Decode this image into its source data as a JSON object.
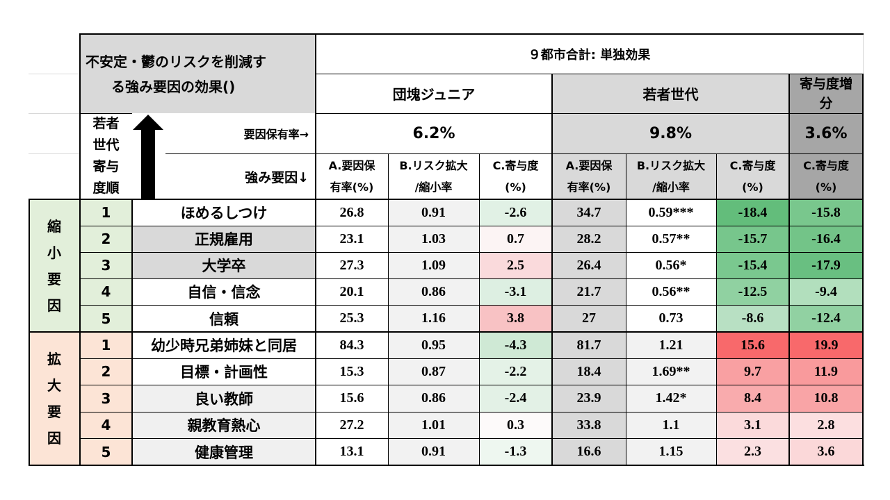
{
  "header": {
    "title_line1": "不安定・鬱のリスクを削減す",
    "title_line2": "る強み要因の効果()",
    "super_header": "９都市合計: 単独効果",
    "group_dankai": "団塊ジュニア",
    "group_wakamono": "若者世代",
    "group_zobun_line1": "寄与度増",
    "group_zobun_line2": "分",
    "rank_label_chars": [
      "若者",
      "世代",
      "寄与",
      "度順"
    ],
    "holding_rate_label": "要因保有率→",
    "strength_factor_label": "強み要因↓",
    "rate_dankai": "6.2%",
    "rate_wakamono": "9.8%",
    "rate_zobun": "3.6%",
    "col_a_line1": "A.要因保",
    "col_a_line2": "有率(%)",
    "col_b_line1": "B.リスク拡大",
    "col_b_line2": "/縮小率",
    "col_c_line1": "C.寄与度",
    "col_c_line2": "(%)"
  },
  "groups": {
    "shrink_chars": [
      "縮",
      "小",
      "要",
      "因"
    ],
    "expand_chars": [
      "拡",
      "大",
      "要",
      "因"
    ]
  },
  "rows": [
    {
      "rank": "1",
      "factor": "ほめるしつけ",
      "d_a": "26.8",
      "d_b": "0.91",
      "d_c": "-2.6",
      "w_a": "34.7",
      "w_b": "0.59***",
      "w_c": "-18.4",
      "z_c": "-15.8",
      "factor_bg": "#ffffff",
      "d_c_bg": "#e1f1e5",
      "w_c_bg": "#63bd7b",
      "z_c_bg": "#79c78d"
    },
    {
      "rank": "2",
      "factor": "正規雇用",
      "d_a": "23.1",
      "d_b": "1.03",
      "d_c": "0.7",
      "w_a": "28.2",
      "w_b": "0.57**",
      "w_c": "-15.7",
      "z_c": "-16.4",
      "factor_bg": "#d9d9d9",
      "d_c_bg": "#fcf4f4",
      "w_c_bg": "#77c68c",
      "z_c_bg": "#73c488"
    },
    {
      "rank": "3",
      "factor": "大学卒",
      "d_a": "27.3",
      "d_b": "1.09",
      "d_c": "2.5",
      "w_a": "26.4",
      "w_b": "0.56*",
      "w_c": "-15.4",
      "z_c": "-17.9",
      "factor_bg": "#d9d9d9",
      "d_c_bg": "#fadadc",
      "w_c_bg": "#7ac88f",
      "z_c_bg": "#69bf81"
    },
    {
      "rank": "4",
      "factor": "自信・信念",
      "d_a": "20.1",
      "d_b": "0.86",
      "d_c": "-3.1",
      "w_a": "21.7",
      "w_b": "0.56**",
      "w_c": "-12.5",
      "z_c": "-9.4",
      "factor_bg": "#ffffff",
      "d_c_bg": "#ddefe2",
      "w_c_bg": "#90d1a1",
      "z_c_bg": "#b2dfbd"
    },
    {
      "rank": "5",
      "factor": "信頼",
      "d_a": "25.3",
      "d_b": "1.16",
      "d_c": "3.8",
      "w_a": "27",
      "w_b": "0.73",
      "w_c": "-8.6",
      "z_c": "-12.4",
      "factor_bg": "#ffffff",
      "d_c_bg": "#f8c2c4",
      "w_c_bg": "#b8e0c3",
      "z_c_bg": "#91d1a2"
    },
    {
      "rank": "1",
      "factor": "幼少時兄弟姉妹と同居",
      "d_a": "84.3",
      "d_b": "0.95",
      "d_c": "-4.3",
      "w_a": "81.7",
      "w_b": "1.21",
      "w_c": "15.6",
      "z_c": "19.9",
      "factor_bg": "#ffffff",
      "d_c_bg": "#cfe9d5",
      "w_c_bg": "#f8696b",
      "z_c_bg": "#f8696b"
    },
    {
      "rank": "2",
      "factor": "目標・計画性",
      "d_a": "15.3",
      "d_b": "0.87",
      "d_c": "-2.2",
      "w_a": "18.4",
      "w_b": "1.69**",
      "w_c": "9.7",
      "z_c": "11.9",
      "factor_bg": "#ffffff",
      "d_c_bg": "#e4f2e7",
      "w_c_bg": "#f9a0a2",
      "z_c_bg": "#f99a9c"
    },
    {
      "rank": "3",
      "factor": "良い教師",
      "d_a": "15.6",
      "d_b": "0.86",
      "d_c": "-2.4",
      "w_a": "23.9",
      "w_b": "1.42*",
      "w_c": "8.4",
      "z_c": "10.8",
      "factor_bg": "#f0f0f0",
      "d_c_bg": "#e3f1e6",
      "w_c_bg": "#f9abad",
      "z_c_bg": "#f9a4a6"
    },
    {
      "rank": "4",
      "factor": "親教育熱心",
      "d_a": "27.2",
      "d_b": "1.01",
      "d_c": "0.3",
      "w_a": "33.8",
      "w_b": "1.1",
      "w_c": "3.1",
      "z_c": "2.8",
      "factor_bg": "#f0f0f0",
      "d_c_bg": "#fdfafa",
      "w_c_bg": "#fbdadb",
      "z_c_bg": "#fcdfe0"
    },
    {
      "rank": "5",
      "factor": "健康管理",
      "d_a": "13.1",
      "d_b": "0.91",
      "d_c": "-1.3",
      "w_a": "16.6",
      "w_b": "1.15",
      "w_c": "2.3",
      "z_c": "3.6",
      "factor_bg": "#f0f0f0",
      "d_c_bg": "#eef7f0",
      "w_c_bg": "#fbe0e1",
      "z_c_bg": "#fbd8d9"
    }
  ],
  "colors": {
    "shrink_group_bg": "#e2efda",
    "expand_group_bg": "#fce4d6",
    "header_gray": "#d9d9d9",
    "wakamono_bg": "#d9d9d9",
    "zobun_header_bg": "#a6a6a6",
    "rank_bg_shrink": "#e2efda",
    "rank_bg_expand": "#fce4d6"
  }
}
